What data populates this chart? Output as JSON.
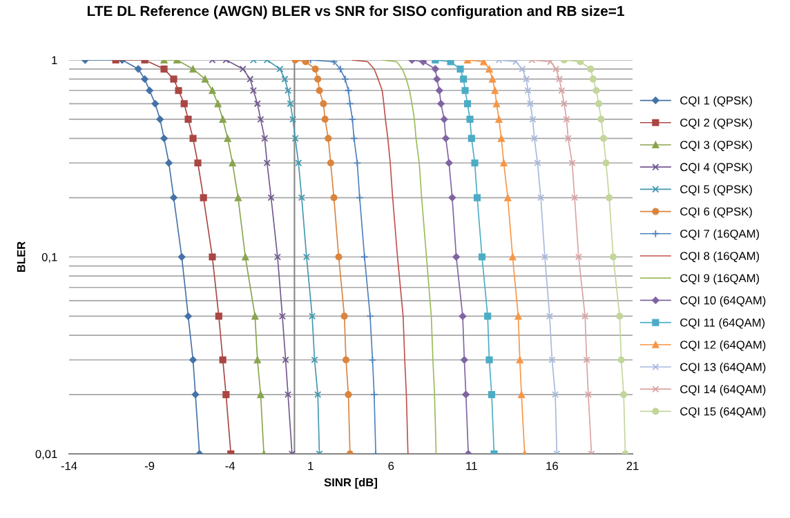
{
  "chart_data": {
    "type": "line",
    "title": "LTE DL Reference (AWGN) BLER vs SNR for SISO configuration and RB size=1",
    "xlabel": "SINR [dB]",
    "ylabel": "BLER",
    "log": "y",
    "grid": "y",
    "legend": "right",
    "xlim": [
      -14,
      21
    ],
    "xticks": [
      -14,
      -9,
      -4,
      1,
      6,
      11,
      16,
      21
    ],
    "ylim": [
      0.01,
      1
    ],
    "yticks": [
      {
        "value": 0.01,
        "label": "0,01"
      },
      {
        "value": 0.02,
        "label": null
      },
      {
        "value": 0.03,
        "label": null
      },
      {
        "value": 0.04,
        "label": null
      },
      {
        "value": 0.05,
        "label": null
      },
      {
        "value": 0.06,
        "label": null
      },
      {
        "value": 0.07,
        "label": null
      },
      {
        "value": 0.08,
        "label": null
      },
      {
        "value": 0.09,
        "label": null
      },
      {
        "value": 0.1,
        "label": "0,1"
      },
      {
        "value": 0.2,
        "label": null
      },
      {
        "value": 0.3,
        "label": null
      },
      {
        "value": 0.4,
        "label": null
      },
      {
        "value": 0.5,
        "label": null
      },
      {
        "value": 0.6,
        "label": null
      },
      {
        "value": 0.7,
        "label": null
      },
      {
        "value": 0.8,
        "label": null
      },
      {
        "value": 0.9,
        "label": null
      },
      {
        "value": 1,
        "label": "1"
      }
    ],
    "ref_lines": [
      {
        "axis": "x",
        "value": 0,
        "color": "#868686"
      }
    ],
    "series": [
      {
        "name": "CQI 1 (QPSK)",
        "color": "#4572a7",
        "marker": "diamond",
        "x": [
          -13.0,
          -10.7,
          -9.7,
          -9.3,
          -9.0,
          -8.65,
          -8.35,
          -8.1,
          -7.8,
          -7.5,
          -7.0,
          -6.6,
          -6.3,
          -6.15,
          -5.9
        ],
        "values": [
          1,
          1,
          0.9,
          0.8,
          0.7,
          0.6,
          0.5,
          0.4,
          0.3,
          0.2,
          0.1,
          0.05,
          0.03,
          0.02,
          0.01
        ]
      },
      {
        "name": "CQI 2 (QPSK)",
        "color": "#aa4643",
        "marker": "square",
        "x": [
          -11.1,
          -9.3,
          -8.1,
          -7.5,
          -7.2,
          -6.85,
          -6.6,
          -6.3,
          -6.0,
          -5.65,
          -5.1,
          -4.7,
          -4.45,
          -4.25,
          -3.95
        ],
        "values": [
          1,
          1,
          0.9,
          0.8,
          0.7,
          0.6,
          0.5,
          0.4,
          0.3,
          0.2,
          0.1,
          0.05,
          0.03,
          0.02,
          0.01
        ]
      },
      {
        "name": "CQI 3 (QPSK)",
        "color": "#89a54e",
        "marker": "triangle",
        "x": [
          -8.1,
          -7.3,
          -6.3,
          -5.55,
          -5.1,
          -4.75,
          -4.45,
          -4.15,
          -3.85,
          -3.5,
          -3.05,
          -2.45,
          -2.3,
          -2.1,
          -1.9
        ],
        "values": [
          1,
          1,
          0.9,
          0.8,
          0.7,
          0.6,
          0.5,
          0.4,
          0.3,
          0.2,
          0.1,
          0.05,
          0.03,
          0.02,
          0.01
        ]
      },
      {
        "name": "CQI 4 (QPSK)",
        "color": "#71588f",
        "marker": "cross",
        "x": [
          -5.1,
          -4.25,
          -3.2,
          -2.75,
          -2.55,
          -2.3,
          -2.1,
          -1.85,
          -1.7,
          -1.45,
          -1.05,
          -0.75,
          -0.55,
          -0.4,
          -0.15
        ],
        "values": [
          1,
          1,
          0.9,
          0.8,
          0.7,
          0.6,
          0.5,
          0.4,
          0.3,
          0.2,
          0.1,
          0.05,
          0.03,
          0.02,
          0.01
        ]
      },
      {
        "name": "CQI 5 (QPSK)",
        "color": "#4198af",
        "marker": "cross",
        "x": [
          -2.55,
          -1.7,
          -0.9,
          -0.6,
          -0.4,
          -0.25,
          -0.1,
          0.05,
          0.25,
          0.45,
          0.75,
          1.1,
          1.25,
          1.45,
          1.55
        ],
        "values": [
          1,
          1,
          0.9,
          0.8,
          0.7,
          0.6,
          0.5,
          0.4,
          0.3,
          0.2,
          0.1,
          0.05,
          0.03,
          0.02,
          0.01
        ]
      },
      {
        "name": "CQI 6 (QPSK)",
        "color": "#db843d",
        "marker": "circle",
        "x": [
          0.05,
          0.7,
          1.3,
          1.45,
          1.55,
          1.8,
          1.9,
          2.1,
          2.25,
          2.45,
          2.75,
          3.1,
          3.2,
          3.35,
          3.45
        ],
        "values": [
          1,
          0.98,
          0.9,
          0.8,
          0.7,
          0.6,
          0.5,
          0.4,
          0.3,
          0.2,
          0.1,
          0.05,
          0.03,
          0.02,
          0.01
        ]
      },
      {
        "name": "CQI 7 (16QAM)",
        "color": "#4f81bd",
        "marker": "plus",
        "x": [
          1.0,
          2.45,
          2.85,
          3.15,
          3.35,
          3.45,
          3.6,
          3.7,
          3.9,
          4.05,
          4.35,
          4.7,
          4.85,
          4.95,
          5.05
        ],
        "values": [
          1,
          0.98,
          0.9,
          0.8,
          0.7,
          0.6,
          0.5,
          0.4,
          0.3,
          0.2,
          0.1,
          0.05,
          0.03,
          0.02,
          0.01
        ]
      },
      {
        "name": "CQI 8 (16QAM)",
        "color": "#c0504d",
        "marker": "none",
        "x": [
          3.6,
          4.55,
          4.95,
          5.2,
          5.45,
          5.55,
          5.65,
          5.8,
          5.95,
          6.1,
          6.4,
          6.75,
          6.85,
          6.95,
          7.05
        ],
        "values": [
          1,
          0.98,
          0.9,
          0.8,
          0.7,
          0.6,
          0.5,
          0.4,
          0.3,
          0.2,
          0.1,
          0.05,
          0.03,
          0.02,
          0.01
        ]
      },
      {
        "name": "CQI 9 (16QAM)",
        "color": "#9bbb59",
        "marker": "none",
        "x": [
          5.45,
          6.35,
          6.7,
          6.95,
          7.15,
          7.3,
          7.45,
          7.55,
          7.75,
          7.9,
          8.2,
          8.5,
          8.6,
          8.7,
          8.8
        ],
        "values": [
          1,
          0.98,
          0.9,
          0.8,
          0.7,
          0.6,
          0.5,
          0.4,
          0.3,
          0.2,
          0.1,
          0.05,
          0.03,
          0.02,
          0.01
        ]
      },
      {
        "name": "CQI 10 (64QAM)",
        "color": "#8064a2",
        "marker": "diamond",
        "x": [
          7.3,
          8.0,
          8.75,
          8.85,
          9.0,
          9.1,
          9.3,
          9.4,
          9.6,
          9.8,
          10.05,
          10.45,
          10.55,
          10.65,
          10.8
        ],
        "values": [
          1,
          0.98,
          0.9,
          0.8,
          0.7,
          0.6,
          0.5,
          0.4,
          0.3,
          0.2,
          0.1,
          0.05,
          0.03,
          0.02,
          0.01
        ]
      },
      {
        "name": "CQI 11 (64QAM)",
        "color": "#4bacc6",
        "marker": "square",
        "x": [
          8.75,
          9.7,
          10.3,
          10.5,
          10.6,
          10.75,
          10.9,
          11.0,
          11.2,
          11.35,
          11.65,
          12.0,
          12.1,
          12.25,
          12.4
        ],
        "values": [
          1,
          0.98,
          0.9,
          0.8,
          0.7,
          0.6,
          0.5,
          0.4,
          0.3,
          0.2,
          0.1,
          0.05,
          0.03,
          0.02,
          0.01
        ]
      },
      {
        "name": "CQI 12 (64QAM)",
        "color": "#f79646",
        "marker": "triangle",
        "x": [
          10.75,
          11.75,
          12.1,
          12.3,
          12.45,
          12.55,
          12.7,
          12.85,
          13.0,
          13.25,
          13.55,
          13.9,
          14.0,
          14.1,
          14.3
        ],
        "values": [
          1,
          0.98,
          0.9,
          0.8,
          0.7,
          0.6,
          0.5,
          0.4,
          0.3,
          0.2,
          0.1,
          0.05,
          0.03,
          0.02,
          0.01
        ]
      },
      {
        "name": "CQI 13 (64QAM)",
        "color": "#a7b9dc",
        "marker": "cross",
        "x": [
          12.7,
          13.75,
          14.15,
          14.4,
          14.5,
          14.65,
          14.8,
          14.9,
          15.1,
          15.3,
          15.55,
          15.85,
          16.0,
          16.2,
          16.3
        ],
        "values": [
          1,
          0.98,
          0.9,
          0.8,
          0.7,
          0.6,
          0.5,
          0.4,
          0.3,
          0.2,
          0.1,
          0.05,
          0.03,
          0.02,
          0.01
        ]
      },
      {
        "name": "CQI 14 (64QAM)",
        "color": "#d9a3a2",
        "marker": "cross",
        "x": [
          14.75,
          15.9,
          16.25,
          16.45,
          16.6,
          16.75,
          16.9,
          17.0,
          17.25,
          17.4,
          17.65,
          18.05,
          18.15,
          18.25,
          18.45
        ],
        "values": [
          1,
          0.98,
          0.9,
          0.8,
          0.7,
          0.6,
          0.5,
          0.4,
          0.3,
          0.2,
          0.1,
          0.05,
          0.03,
          0.02,
          0.01
        ]
      },
      {
        "name": "CQI 15 (64QAM)",
        "color": "#c3d69b",
        "marker": "circle",
        "x": [
          16.75,
          17.75,
          18.4,
          18.55,
          18.75,
          18.9,
          19.05,
          19.2,
          19.35,
          19.55,
          19.8,
          20.2,
          20.3,
          20.45,
          20.55
        ],
        "values": [
          1,
          0.98,
          0.9,
          0.8,
          0.7,
          0.6,
          0.5,
          0.4,
          0.3,
          0.2,
          0.1,
          0.05,
          0.03,
          0.02,
          0.01
        ]
      }
    ]
  }
}
